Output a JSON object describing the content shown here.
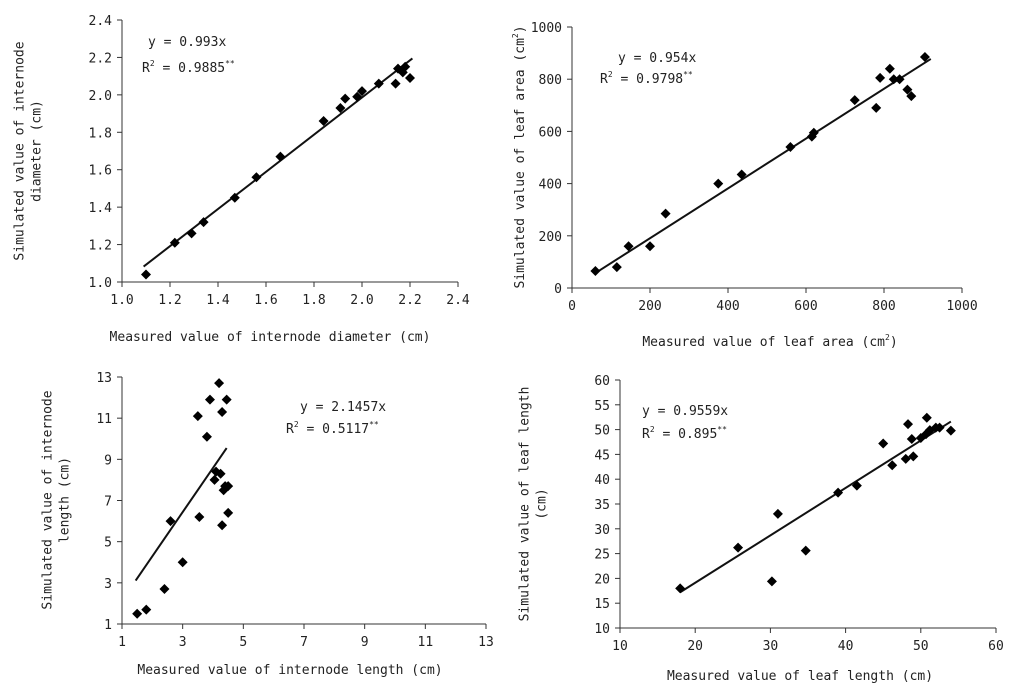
{
  "chart_data": [
    {
      "type": "scatter",
      "xlabel": "Measured value of internode diameter (cm)",
      "ylabel_lines": [
        "Simulated value of internode",
        "diameter (cm)"
      ],
      "equation": "y = 0.993x",
      "r2_prefix": "R",
      "r2_value": " = 0.9885",
      "r2_sig": "**",
      "slope": 0.993,
      "xlim": [
        1.0,
        2.4
      ],
      "ylim": [
        1.0,
        2.4
      ],
      "xticks": [
        "1.0",
        "1.2",
        "1.4",
        "1.6",
        "1.8",
        "2.0",
        "2.2",
        "2.4"
      ],
      "yticks": [
        "1.0",
        "1.2",
        "1.4",
        "1.6",
        "1.8",
        "2.0",
        "2.2",
        "2.4"
      ],
      "fit_x": [
        1.09,
        2.21
      ],
      "x": [
        1.1,
        1.22,
        1.29,
        1.34,
        1.47,
        1.56,
        1.66,
        1.84,
        1.91,
        1.93,
        1.98,
        2.0,
        2.07,
        2.14,
        2.15,
        2.17,
        2.18,
        2.2
      ],
      "y": [
        1.04,
        1.21,
        1.26,
        1.32,
        1.45,
        1.56,
        1.67,
        1.86,
        1.93,
        1.98,
        1.99,
        2.02,
        2.06,
        2.06,
        2.14,
        2.12,
        2.15,
        2.09
      ]
    },
    {
      "type": "scatter",
      "xlabel_pre": "Measured value of leaf area (cm",
      "xlabel_sup": "2",
      "xlabel_post": ")",
      "ylabel_pre": "Simulated value of leaf area (cm",
      "ylabel_sup": "2",
      "ylabel_post": ")",
      "equation": "y = 0.954x",
      "r2_prefix": "R",
      "r2_value": " = 0.9798",
      "r2_sig": "**",
      "slope": 0.954,
      "xlim": [
        0,
        1000
      ],
      "ylim": [
        0,
        1000
      ],
      "xticks": [
        "0",
        "200",
        "400",
        "600",
        "800",
        "1000"
      ],
      "yticks": [
        "0",
        "200",
        "400",
        "600",
        "800",
        "1000"
      ],
      "fit_x": [
        60,
        920
      ],
      "x": [
        60,
        115,
        145,
        200,
        240,
        375,
        435,
        560,
        615,
        620,
        725,
        780,
        790,
        815,
        825,
        840,
        860,
        870,
        905
      ],
      "y": [
        65,
        80,
        160,
        160,
        285,
        400,
        435,
        540,
        580,
        595,
        720,
        690,
        805,
        840,
        800,
        800,
        760,
        735,
        885
      ]
    },
    {
      "type": "scatter",
      "xlabel": "Measured value of internode length (cm)",
      "ylabel_lines": [
        "Simulated value of internode",
        "length (cm)"
      ],
      "equation": "y = 2.1457x",
      "r2_prefix": "R",
      "r2_value": " = 0.5117",
      "r2_sig": "**",
      "slope": 2.1457,
      "xlim": [
        1,
        13
      ],
      "ylim": [
        1,
        13
      ],
      "xticks": [
        "1",
        "3",
        "5",
        "7",
        "9",
        "11",
        "13"
      ],
      "yticks": [
        "1",
        "3",
        "5",
        "7",
        "9",
        "11",
        "13"
      ],
      "fit_x": [
        1.45,
        4.45
      ],
      "x": [
        1.5,
        1.8,
        2.4,
        2.6,
        3.0,
        3.5,
        3.55,
        3.8,
        3.9,
        4.05,
        4.1,
        4.2,
        4.25,
        4.3,
        4.3,
        4.35,
        4.4,
        4.45,
        4.5,
        4.5
      ],
      "y": [
        1.5,
        1.7,
        2.7,
        6.0,
        4.0,
        11.1,
        6.2,
        10.1,
        11.9,
        8.0,
        8.4,
        12.7,
        8.3,
        5.8,
        11.3,
        7.5,
        7.7,
        11.9,
        6.4,
        7.7
      ]
    },
    {
      "type": "scatter",
      "xlabel": "Measured value of leaf length (cm)",
      "ylabel_lines": [
        "Simulated value of leaf length",
        "(cm)"
      ],
      "equation": "y = 0.9559x",
      "r2_prefix": "R",
      "r2_value": " = 0.895",
      "r2_sig": "**",
      "slope": 0.9559,
      "xlim": [
        10,
        60
      ],
      "ylim": [
        10,
        60
      ],
      "xticks": [
        "10",
        "20",
        "30",
        "40",
        "50",
        "60"
      ],
      "yticks": [
        "10",
        "15",
        "20",
        "25",
        "30",
        "35",
        "40",
        "45",
        "50",
        "55",
        "60"
      ],
      "fit_x": [
        18,
        54
      ],
      "x": [
        18,
        25.7,
        30.2,
        31,
        34.7,
        39,
        41.5,
        45,
        46.2,
        48,
        48.3,
        48.8,
        49,
        50,
        50.7,
        50.8,
        51.2,
        52,
        52.5,
        54
      ],
      "y": [
        18,
        26.2,
        19.4,
        33,
        25.6,
        37.3,
        38.7,
        47.2,
        42.8,
        44.1,
        51.1,
        48.1,
        44.6,
        48.3,
        49.1,
        52.4,
        49.9,
        50.4,
        50.4,
        49.8
      ]
    }
  ]
}
